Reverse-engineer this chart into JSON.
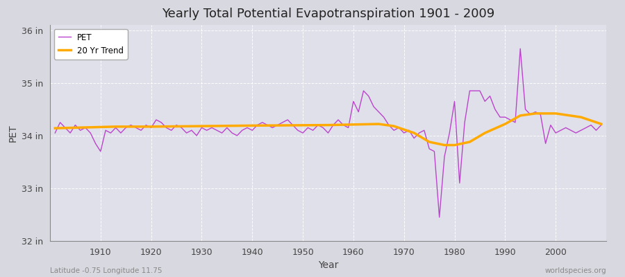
{
  "title": "Yearly Total Potential Evapotranspiration 1901 - 2009",
  "xlabel": "Year",
  "ylabel": "PET",
  "subtitle_left": "Latitude -0.75 Longitude 11.75",
  "subtitle_right": "worldspecies.org",
  "pet_color": "#bb44cc",
  "trend_color": "#ffaa00",
  "fig_facecolor": "#d8d8e0",
  "plot_bg_color": "#e0e0ea",
  "ylim": [
    32,
    36.1
  ],
  "yticks": [
    32,
    33,
    34,
    35,
    36
  ],
  "ytick_labels": [
    "32 in",
    "33 in",
    "34 in",
    "35 in",
    "36 in"
  ],
  "years": [
    1901,
    1902,
    1903,
    1904,
    1905,
    1906,
    1907,
    1908,
    1909,
    1910,
    1911,
    1912,
    1913,
    1914,
    1915,
    1916,
    1917,
    1918,
    1919,
    1920,
    1921,
    1922,
    1923,
    1924,
    1925,
    1926,
    1927,
    1928,
    1929,
    1930,
    1931,
    1932,
    1933,
    1934,
    1935,
    1936,
    1937,
    1938,
    1939,
    1940,
    1941,
    1942,
    1943,
    1944,
    1945,
    1946,
    1947,
    1948,
    1949,
    1950,
    1951,
    1952,
    1953,
    1954,
    1955,
    1956,
    1957,
    1958,
    1959,
    1960,
    1961,
    1962,
    1963,
    1964,
    1965,
    1966,
    1967,
    1968,
    1969,
    1970,
    1971,
    1972,
    1973,
    1974,
    1975,
    1976,
    1977,
    1978,
    1979,
    1980,
    1981,
    1982,
    1983,
    1984,
    1985,
    1986,
    1987,
    1988,
    1989,
    1990,
    1991,
    1992,
    1993,
    1994,
    1995,
    1996,
    1997,
    1998,
    1999,
    2000,
    2001,
    2002,
    2003,
    2004,
    2005,
    2006,
    2007,
    2008,
    2009
  ],
  "pet_values": [
    34.05,
    34.25,
    34.15,
    34.05,
    34.2,
    34.1,
    34.15,
    34.05,
    33.85,
    33.7,
    34.1,
    34.05,
    34.15,
    34.05,
    34.15,
    34.2,
    34.15,
    34.1,
    34.2,
    34.15,
    34.3,
    34.25,
    34.15,
    34.1,
    34.2,
    34.15,
    34.05,
    34.1,
    34.0,
    34.15,
    34.1,
    34.15,
    34.1,
    34.05,
    34.15,
    34.05,
    34.0,
    34.1,
    34.15,
    34.1,
    34.2,
    34.25,
    34.2,
    34.15,
    34.2,
    34.25,
    34.3,
    34.2,
    34.1,
    34.05,
    34.15,
    34.1,
    34.2,
    34.15,
    34.05,
    34.2,
    34.3,
    34.2,
    34.15,
    34.65,
    34.45,
    34.85,
    34.75,
    34.55,
    34.45,
    34.35,
    34.2,
    34.1,
    34.15,
    34.05,
    34.1,
    33.95,
    34.05,
    34.1,
    33.75,
    33.7,
    32.45,
    33.6,
    34.05,
    34.65,
    33.1,
    34.25,
    34.85,
    34.85,
    34.85,
    34.65,
    34.75,
    34.5,
    34.35,
    34.35,
    34.3,
    34.25,
    35.65,
    34.5,
    34.4,
    34.45,
    34.4,
    33.85,
    34.2,
    34.05,
    34.1,
    34.15,
    34.1,
    34.05,
    34.1,
    34.15,
    34.2,
    34.1,
    34.2
  ],
  "trend_x": [
    1901,
    1913,
    1920,
    1930,
    1940,
    1955,
    1960,
    1965,
    1968,
    1972,
    1975,
    1978,
    1980,
    1983,
    1986,
    1990,
    1993,
    1996,
    2000,
    2005,
    2009
  ],
  "trend_y": [
    34.14,
    34.17,
    34.17,
    34.18,
    34.19,
    34.2,
    34.21,
    34.22,
    34.18,
    34.05,
    33.88,
    33.82,
    33.82,
    33.88,
    34.05,
    34.22,
    34.38,
    34.42,
    34.42,
    34.35,
    34.22
  ]
}
